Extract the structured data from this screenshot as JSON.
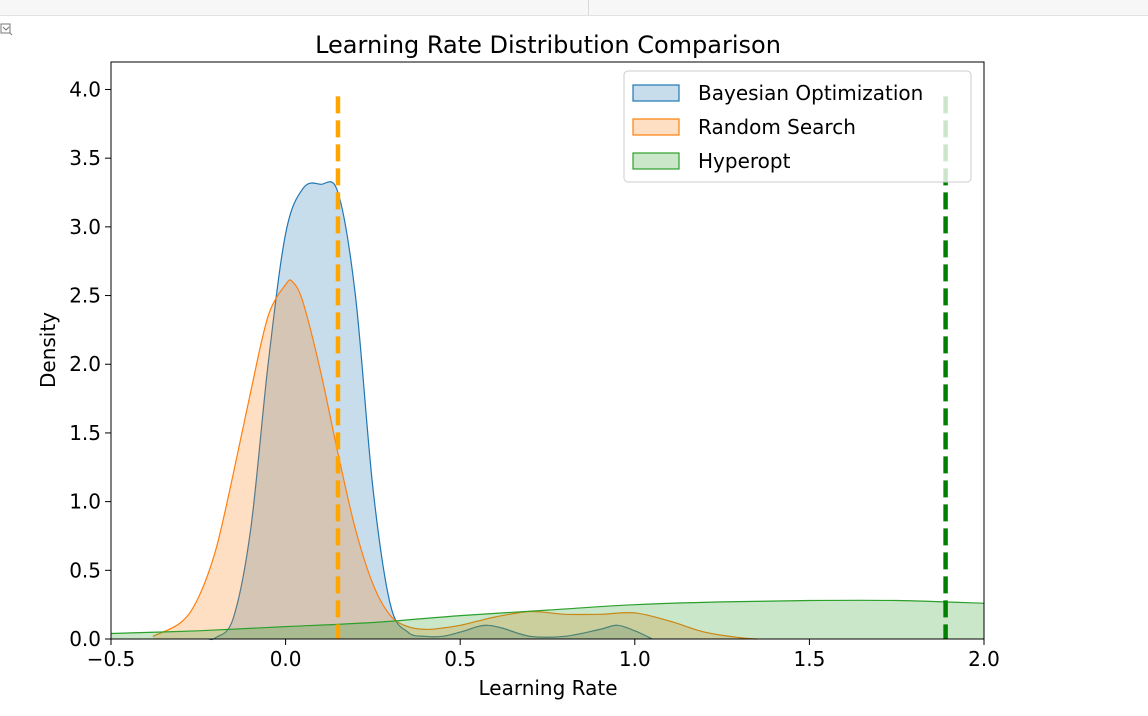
{
  "notebook": {
    "output_icon": "output-collapse-icon"
  },
  "chart_data": {
    "type": "area",
    "title": "Learning Rate Distribution Comparison",
    "xlabel": "Learning Rate",
    "ylabel": "Density",
    "xlim": [
      -0.5,
      2.0
    ],
    "ylim": [
      0.0,
      4.2
    ],
    "xticks": [
      -0.5,
      0.0,
      0.5,
      1.0,
      1.5,
      2.0
    ],
    "xtick_labels": [
      "−0.5",
      "0.0",
      "0.5",
      "1.0",
      "1.5",
      "2.0"
    ],
    "yticks": [
      0.0,
      0.5,
      1.0,
      1.5,
      2.0,
      2.5,
      3.0,
      3.5,
      4.0
    ],
    "ytick_labels": [
      "0.0",
      "0.5",
      "1.0",
      "1.5",
      "2.0",
      "2.5",
      "3.0",
      "3.5",
      "4.0"
    ],
    "grid": false,
    "legend_position": "top-right",
    "series": [
      {
        "name": "Bayesian Optimization",
        "color": "#1f77b4",
        "x": [
          -0.22,
          -0.2,
          -0.15,
          -0.1,
          -0.05,
          0.0,
          0.05,
          0.1,
          0.15,
          0.2,
          0.25,
          0.3,
          0.35,
          0.4,
          0.45,
          0.5,
          0.55,
          0.58,
          0.62,
          0.7,
          0.8,
          0.9,
          0.95,
          1.0,
          1.05
        ],
        "y": [
          0.0,
          0.01,
          0.15,
          0.8,
          2.0,
          2.95,
          3.28,
          3.31,
          3.25,
          2.5,
          1.1,
          0.25,
          0.05,
          0.02,
          0.02,
          0.05,
          0.09,
          0.1,
          0.08,
          0.02,
          0.02,
          0.07,
          0.1,
          0.06,
          0.0
        ]
      },
      {
        "name": "Random Search",
        "color": "#ff7f0e",
        "x": [
          -0.38,
          -0.3,
          -0.25,
          -0.2,
          -0.15,
          -0.1,
          -0.05,
          0.0,
          0.02,
          0.05,
          0.1,
          0.15,
          0.2,
          0.25,
          0.3,
          0.35,
          0.4,
          0.45,
          0.5,
          0.55,
          0.6,
          0.7,
          0.8,
          0.9,
          1.0,
          1.1,
          1.2,
          1.3,
          1.35
        ],
        "y": [
          0.02,
          0.12,
          0.3,
          0.65,
          1.2,
          1.8,
          2.35,
          2.58,
          2.6,
          2.45,
          1.95,
          1.35,
          0.8,
          0.4,
          0.17,
          0.09,
          0.07,
          0.08,
          0.1,
          0.13,
          0.16,
          0.2,
          0.18,
          0.18,
          0.19,
          0.13,
          0.05,
          0.01,
          0.0
        ]
      },
      {
        "name": "Hyperopt",
        "color": "#2ca02c",
        "x": [
          -0.5,
          -0.25,
          0.0,
          0.25,
          0.5,
          0.75,
          1.0,
          1.25,
          1.5,
          1.75,
          2.0
        ],
        "y": [
          0.04,
          0.06,
          0.09,
          0.12,
          0.17,
          0.21,
          0.25,
          0.27,
          0.28,
          0.28,
          0.26
        ]
      }
    ],
    "reference_lines": [
      {
        "x": 0.15,
        "y_top": 3.95,
        "color": "#ffa500",
        "style": "dashed"
      },
      {
        "x": 1.89,
        "y_top": 3.95,
        "color": "#008000",
        "style": "dashed"
      }
    ]
  }
}
